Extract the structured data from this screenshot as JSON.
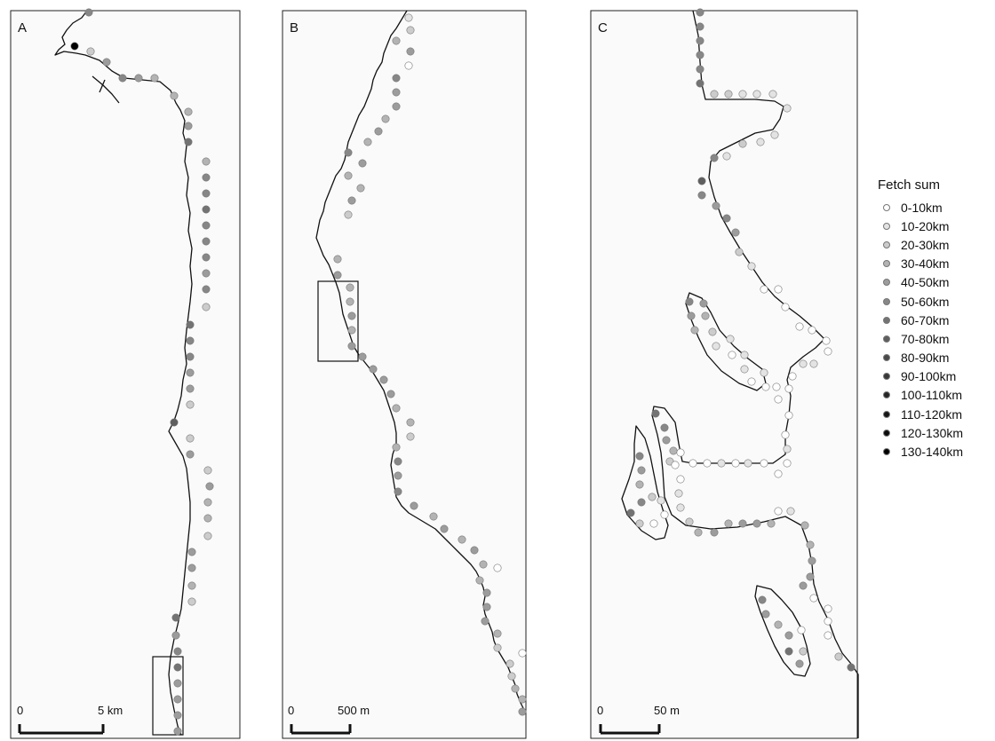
{
  "panels": [
    {
      "label": "A",
      "scale": {
        "zero": "0",
        "end": "5 km"
      }
    },
    {
      "label": "B",
      "scale": {
        "zero": "0",
        "end": "500 m"
      }
    },
    {
      "label": "C",
      "scale": {
        "zero": "0",
        "end": "50 m"
      }
    }
  ],
  "legend": {
    "title": "Fetch sum",
    "items": [
      {
        "label": "0-10km",
        "color": "#ffffff"
      },
      {
        "label": "10-20km",
        "color": "#e3e3e3"
      },
      {
        "label": "20-30km",
        "color": "#cccccc"
      },
      {
        "label": "30-40km",
        "color": "#b3b3b3"
      },
      {
        "label": "40-50km",
        "color": "#9c9c9c"
      },
      {
        "label": "50-60km",
        "color": "#878787"
      },
      {
        "label": "60-70km",
        "color": "#737373"
      },
      {
        "label": "70-80km",
        "color": "#5e5e5e"
      },
      {
        "label": "80-90km",
        "color": "#4a4a4a"
      },
      {
        "label": "90-100km",
        "color": "#383838"
      },
      {
        "label": "100-110km",
        "color": "#262626"
      },
      {
        "label": "110-120km",
        "color": "#171717"
      },
      {
        "label": "120-130km",
        "color": "#0b0b0b"
      },
      {
        "label": "130-140km",
        "color": "#000000"
      }
    ]
  }
}
